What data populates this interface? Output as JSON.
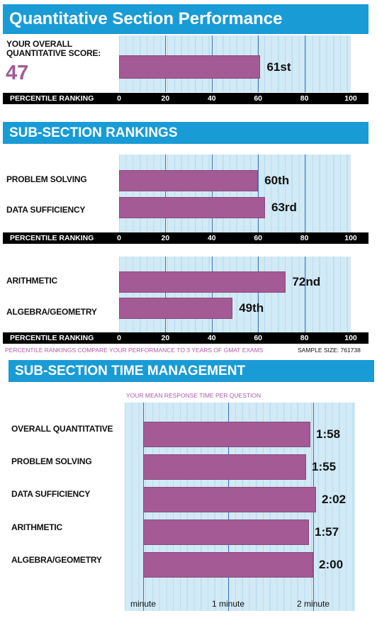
{
  "quant_header": {
    "title": "Quantitative Section Performance"
  },
  "overall": {
    "label_line1": "YOUR OVERALL",
    "label_line2": "QUANTITATIVE SCORE:",
    "score": "47",
    "percentile_value": 61,
    "percentile_label": "61st"
  },
  "subsection_header": {
    "title": "SUB-SECTION RANKINGS"
  },
  "axis": {
    "title": "PERCENTILE RANKING",
    "ticks": [
      "0",
      "20",
      "40",
      "60",
      "80",
      "100"
    ]
  },
  "footer": {
    "note": "PERCENTILE RANKINGS COMPARE YOUR PERFORMANCE TO 3 YEARS OF GMAT EXAMS",
    "sample": "SAMPLE SIZE: 761738"
  },
  "time_header": {
    "title": "SUB-SECTION TIME MANAGEMENT"
  },
  "time_subtitle": "YOUR MEAN RESPONSE TIME PER QUESTION",
  "time_axis_ticks": [
    "minute",
    "1 minute",
    "2 minute"
  ],
  "colors": {
    "header": "#199bd6",
    "bar": "#a45a94",
    "plot_bg": "#d2eaf5",
    "score": "#a45a94"
  },
  "chart_data": [
    {
      "type": "bar",
      "orientation": "horizontal",
      "categories": [
        "YOUR OVERALL QUANTITATIVE SCORE"
      ],
      "values": [
        61
      ],
      "data_labels": [
        "61st"
      ],
      "xlabel": "PERCENTILE RANKING",
      "xlim": [
        0,
        100
      ]
    },
    {
      "type": "bar",
      "orientation": "horizontal",
      "categories": [
        "PROBLEM SOLVING",
        "DATA SUFFICIENCY"
      ],
      "values": [
        60,
        63
      ],
      "data_labels": [
        "60th",
        "63rd"
      ],
      "xlabel": "PERCENTILE RANKING",
      "xlim": [
        0,
        100
      ]
    },
    {
      "type": "bar",
      "orientation": "horizontal",
      "categories": [
        "ARITHMETIC",
        "ALGEBRA/GEOMETRY"
      ],
      "values": [
        72,
        49
      ],
      "data_labels": [
        "72nd",
        "49th"
      ],
      "xlabel": "PERCENTILE RANKING",
      "xlim": [
        0,
        100
      ]
    },
    {
      "type": "bar",
      "orientation": "horizontal",
      "title": "YOUR MEAN RESPONSE TIME PER QUESTION",
      "categories": [
        "OVERALL QUANTITATIVE",
        "PROBLEM SOLVING",
        "DATA SUFFICIENCY",
        "ARITHMETIC",
        "ALGEBRA/GEOMETRY"
      ],
      "values": [
        118,
        115,
        122,
        117,
        120
      ],
      "data_labels": [
        "1:58",
        "1:55",
        "2:02",
        "1:57",
        "2:00"
      ],
      "xlim": [
        0,
        150
      ]
    }
  ]
}
